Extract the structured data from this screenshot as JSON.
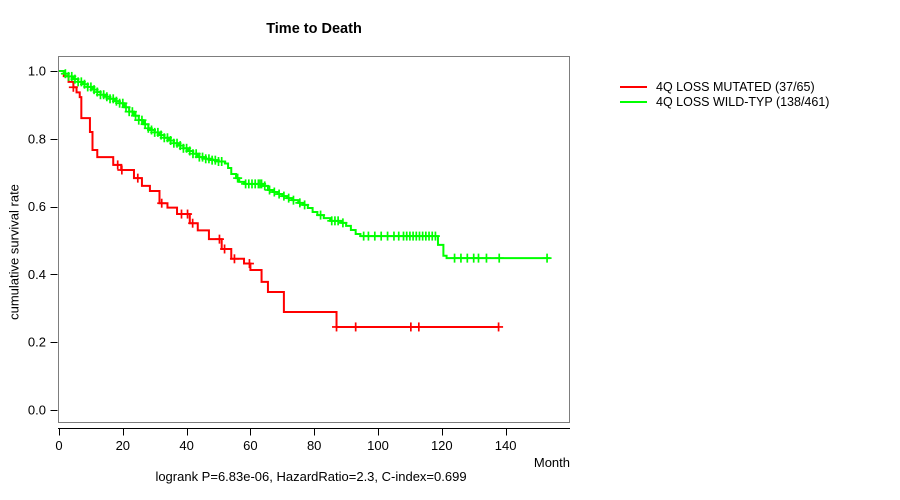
{
  "title": "Time to Death",
  "footer": "logrank P=6.83e-06, HazardRatio=2.3, C-index=0.699",
  "y_axis": {
    "label": "cumulative survival rate",
    "ticks": [
      "0.0",
      "0.2",
      "0.4",
      "0.6",
      "0.8",
      "1.0"
    ]
  },
  "x_axis": {
    "label": "Month",
    "ticks": [
      0,
      20,
      40,
      60,
      80,
      100,
      120,
      140
    ]
  },
  "legend": [
    {
      "label": "4Q LOSS MUTATED (37/65)",
      "color": "#ff0000"
    },
    {
      "label": "4Q LOSS WILD-TYP (138/461)",
      "color": "#00ff00"
    }
  ],
  "chart_data": {
    "type": "line",
    "subtype": "kaplan-meier-step",
    "title": "Time to Death",
    "xlabel": "Month",
    "ylabel": "cumulative survival rate",
    "xlim": [
      0,
      160
    ],
    "ylim": [
      0.0,
      1.0
    ],
    "grid": false,
    "legend_position": "right-outside",
    "series": [
      {
        "name": "4Q LOSS MUTATED (37/65)",
        "color": "#ff0000",
        "end_month": 138,
        "steps": [
          [
            0,
            1.0
          ],
          [
            1.5,
            0.985
          ],
          [
            3,
            0.968
          ],
          [
            4.5,
            0.952
          ],
          [
            5.5,
            0.937
          ],
          [
            6.5,
            0.923
          ],
          [
            7,
            0.861
          ],
          [
            9.7,
            0.82
          ],
          [
            10.5,
            0.767
          ],
          [
            12,
            0.746
          ],
          [
            17,
            0.723
          ],
          [
            19.5,
            0.708
          ],
          [
            23.5,
            0.684
          ],
          [
            26,
            0.661
          ],
          [
            28.5,
            0.646
          ],
          [
            31.5,
            0.61
          ],
          [
            34,
            0.597
          ],
          [
            37,
            0.578
          ],
          [
            41,
            0.551
          ],
          [
            43.5,
            0.53
          ],
          [
            47,
            0.504
          ],
          [
            51,
            0.475
          ],
          [
            54,
            0.446
          ],
          [
            58,
            0.432
          ],
          [
            60,
            0.413
          ],
          [
            63.5,
            0.378
          ],
          [
            65.5,
            0.348
          ],
          [
            70.5,
            0.289
          ],
          [
            87,
            0.245
          ]
        ],
        "censor_marks": [
          4.5,
          18.4,
          19.7,
          24.7,
          32.2,
          38.4,
          40.3,
          41.9,
          50.3,
          51.9,
          55,
          59.7,
          87,
          93,
          110.3,
          112.8,
          137.8
        ]
      },
      {
        "name": "4Q LOSS WILD-TYP (138/461)",
        "color": "#00ff00",
        "end_month": 154,
        "steps": [
          [
            0,
            1.0
          ],
          [
            1.5,
            0.992
          ],
          [
            3,
            0.984
          ],
          [
            4.5,
            0.976
          ],
          [
            6,
            0.968
          ],
          [
            7.5,
            0.961
          ],
          [
            9,
            0.953
          ],
          [
            10.5,
            0.945
          ],
          [
            12,
            0.938
          ],
          [
            13,
            0.93
          ],
          [
            14.5,
            0.924
          ],
          [
            16,
            0.918
          ],
          [
            17.5,
            0.911
          ],
          [
            19,
            0.905
          ],
          [
            20.5,
            0.893
          ],
          [
            22,
            0.88
          ],
          [
            23.5,
            0.868
          ],
          [
            25,
            0.855
          ],
          [
            26.5,
            0.843
          ],
          [
            28,
            0.831
          ],
          [
            28.6,
            0.826
          ],
          [
            30,
            0.819
          ],
          [
            31.5,
            0.811
          ],
          [
            33,
            0.803
          ],
          [
            34.5,
            0.795
          ],
          [
            36,
            0.787
          ],
          [
            37.5,
            0.78
          ],
          [
            39,
            0.772
          ],
          [
            40.5,
            0.764
          ],
          [
            42,
            0.756
          ],
          [
            43.5,
            0.749
          ],
          [
            44,
            0.746
          ],
          [
            46,
            0.741
          ],
          [
            48,
            0.737
          ],
          [
            50,
            0.733
          ],
          [
            52,
            0.727
          ],
          [
            53,
            0.714
          ],
          [
            54,
            0.696
          ],
          [
            55.5,
            0.684
          ],
          [
            56.5,
            0.673
          ],
          [
            58,
            0.667
          ],
          [
            64,
            0.661
          ],
          [
            65.5,
            0.649
          ],
          [
            67,
            0.643
          ],
          [
            68.5,
            0.637
          ],
          [
            70,
            0.631
          ],
          [
            71.5,
            0.625
          ],
          [
            73,
            0.619
          ],
          [
            75,
            0.611
          ],
          [
            76.5,
            0.605
          ],
          [
            78,
            0.596
          ],
          [
            79.5,
            0.584
          ],
          [
            81,
            0.575
          ],
          [
            83,
            0.566
          ],
          [
            85,
            0.558
          ],
          [
            88.5,
            0.552
          ],
          [
            90,
            0.543
          ],
          [
            91.5,
            0.531
          ],
          [
            93,
            0.519
          ],
          [
            94.5,
            0.513
          ],
          [
            118.8,
            0.487
          ],
          [
            120.5,
            0.455
          ],
          [
            121.5,
            0.448
          ]
        ],
        "censor_marks": [
          2,
          3,
          4,
          5,
          6,
          7,
          8,
          9,
          10,
          11,
          12,
          13,
          14,
          15,
          16,
          17,
          18,
          19,
          20,
          21,
          22,
          23,
          24,
          25,
          26,
          27,
          28,
          29,
          30,
          31,
          32,
          33,
          34,
          35,
          36,
          37,
          38,
          39,
          40,
          41,
          42,
          43,
          44,
          45,
          46,
          47,
          48,
          49,
          50,
          51,
          56,
          58.5,
          59.5,
          60.5,
          61.5,
          62.5,
          63,
          63.5,
          64.5,
          66,
          67.5,
          69,
          70.5,
          72,
          73.5,
          75.5,
          77,
          82,
          85.5,
          86.5,
          87.5,
          89,
          95.5,
          97,
          99,
          101,
          103,
          105,
          106.5,
          108,
          109,
          110,
          111,
          112,
          113,
          114,
          115,
          116,
          117,
          118,
          124,
          126,
          128,
          130,
          131.5,
          134,
          138,
          153
        ]
      }
    ]
  }
}
